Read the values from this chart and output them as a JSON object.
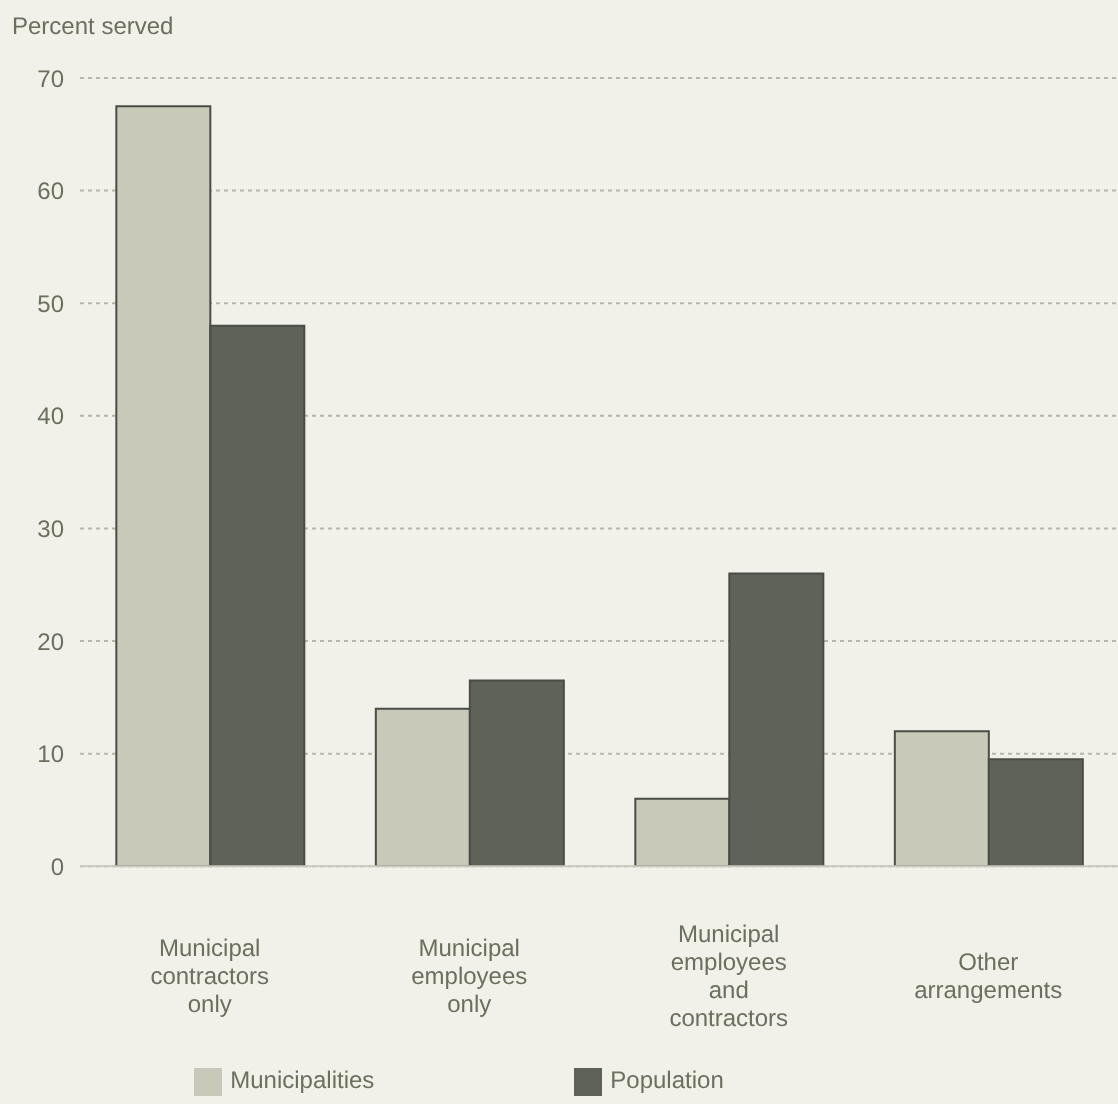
{
  "chart_data": {
    "type": "bar",
    "ylabel": "Percent served",
    "categories": [
      "Municipal contractors only",
      "Municipal employees only",
      "Municipal employees and contractors",
      "Other arrangements"
    ],
    "series": [
      {
        "name": "Municipalities",
        "color": "#c8c9b8",
        "values": [
          67.5,
          14,
          6,
          12
        ]
      },
      {
        "name": "Population",
        "color": "#5f6258",
        "values": [
          48,
          16.5,
          26,
          9.5
        ]
      }
    ],
    "ylim": [
      0,
      70
    ],
    "yticks": [
      0,
      10,
      20,
      30,
      40,
      50,
      60,
      70
    ],
    "grid": "y",
    "legend": "bottom"
  }
}
